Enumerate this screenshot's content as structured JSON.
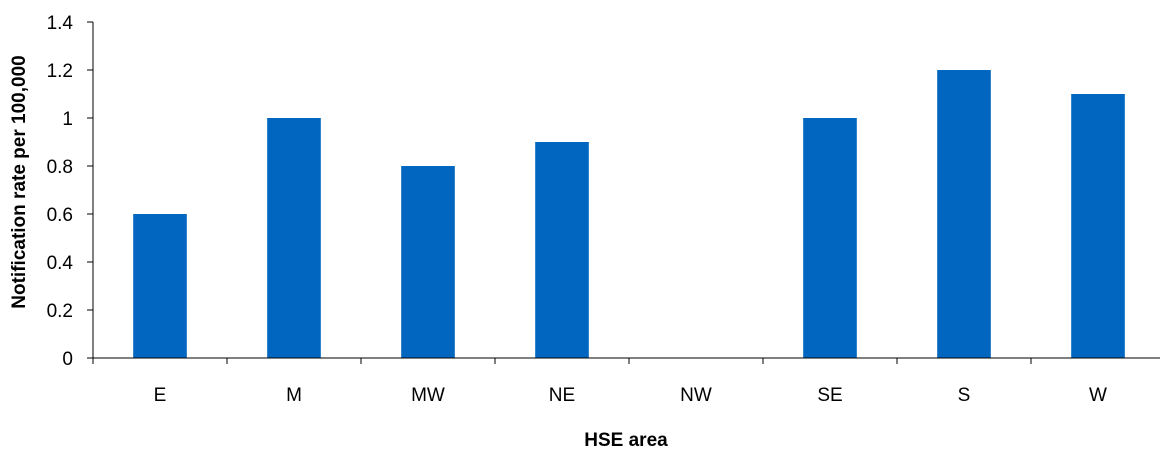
{
  "chart_data": {
    "type": "bar",
    "categories": [
      "E",
      "M",
      "MW",
      "NE",
      "NW",
      "SE",
      "S",
      "W"
    ],
    "values": [
      0.6,
      1.0,
      0.8,
      0.9,
      0,
      1.0,
      1.2,
      1.1
    ],
    "xlabel": "HSE area",
    "ylabel": "Notification rate per 100,000",
    "ylim": [
      0,
      1.4
    ],
    "yticks": [
      "0",
      "0.2",
      "0.4",
      "0.6",
      "0.8",
      "1",
      "1.2",
      "1.4"
    ],
    "bar_color": "#0066bf",
    "grid": false,
    "legend": "none"
  }
}
